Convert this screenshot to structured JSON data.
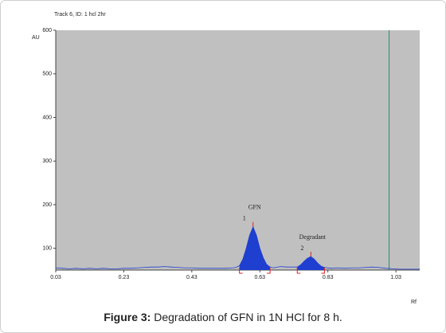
{
  "chart_data": {
    "type": "line",
    "title": "Track 6, ID: 1 hcl 2hr",
    "y_label": "AU",
    "x_label": "Rf",
    "caption_label": "Figure 3:",
    "caption_text": "Degradation of GFN in 1N HCl for 8 h.",
    "xlim": [
      0.03,
      1.1
    ],
    "ylim": [
      50,
      600
    ],
    "xticks": [
      0.03,
      0.23,
      0.43,
      0.63,
      0.83,
      1.03
    ],
    "yticks": [
      100,
      200,
      300,
      400,
      500,
      600
    ],
    "solvent_front_rf": 1.01,
    "series": [
      {
        "name": "Track 6",
        "color": "#1f3fd0",
        "x": [
          0.03,
          0.05,
          0.07,
          0.09,
          0.11,
          0.13,
          0.15,
          0.17,
          0.19,
          0.21,
          0.23,
          0.25,
          0.27,
          0.29,
          0.31,
          0.33,
          0.35,
          0.37,
          0.39,
          0.41,
          0.43,
          0.45,
          0.47,
          0.49,
          0.51,
          0.53,
          0.55,
          0.56,
          0.57,
          0.58,
          0.59,
          0.6,
          0.61,
          0.62,
          0.63,
          0.64,
          0.65,
          0.66,
          0.67,
          0.69,
          0.71,
          0.73,
          0.74,
          0.75,
          0.76,
          0.77,
          0.78,
          0.79,
          0.8,
          0.81,
          0.82,
          0.84,
          0.86,
          0.88,
          0.9,
          0.92,
          0.94,
          0.96,
          0.98,
          1.0,
          1.02,
          1.04,
          1.06,
          1.08,
          1.1
        ],
        "values": [
          55,
          54,
          53,
          54,
          53,
          54,
          53,
          54,
          53,
          53,
          54,
          54,
          55,
          56,
          57,
          57,
          58,
          57,
          56,
          55,
          55,
          54,
          54,
          54,
          54,
          54,
          55,
          56,
          60,
          75,
          100,
          130,
          149,
          130,
          100,
          78,
          63,
          57,
          55,
          58,
          57,
          57,
          57,
          62,
          70,
          77,
          81,
          75,
          66,
          59,
          56,
          54,
          55,
          54,
          55,
          55,
          56,
          57,
          56,
          54,
          53,
          52,
          52,
          52,
          52
        ]
      }
    ],
    "peaks": [
      {
        "number": "1",
        "label": "GFN",
        "start": 0.57,
        "end": 0.66
      },
      {
        "number": "2",
        "label": "Degradant",
        "start": 0.74,
        "end": 0.82
      }
    ]
  }
}
